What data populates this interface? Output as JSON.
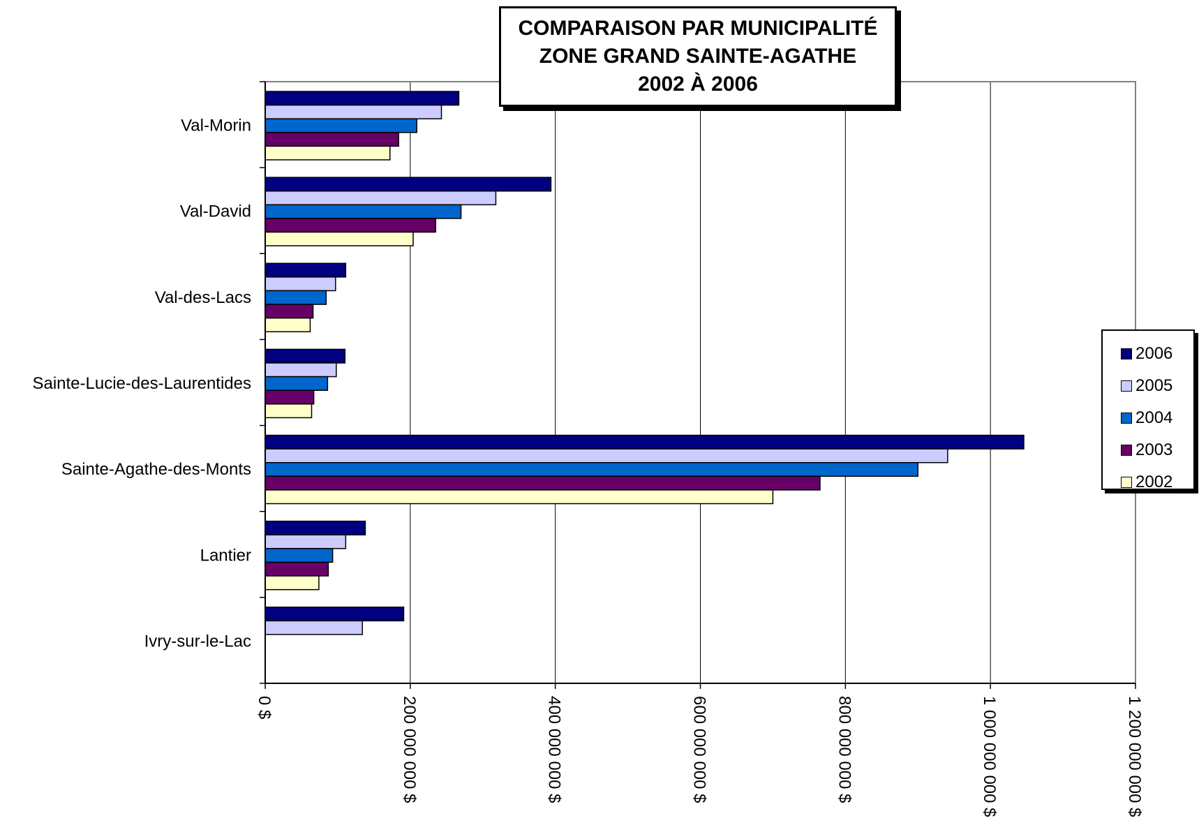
{
  "chart_data": {
    "type": "bar",
    "orientation": "horizontal",
    "title_lines": [
      "COMPARAISON PAR MUNICIPALITÉ",
      "ZONE GRAND SAINTE-AGATHE",
      "2002 À 2006"
    ],
    "categories": [
      "Val-Morin",
      "Val-David",
      "Val-des-Lacs",
      "Sainte-Lucie-des-Laurentides",
      "Sainte-Agathe-des-Monts",
      "Lantier",
      "Ivry-sur-le-Lac"
    ],
    "series": [
      {
        "name": "2006",
        "color": "#000080",
        "values": [
          267000000,
          394000000,
          111000000,
          110000000,
          1046000000,
          138000000,
          191000000
        ]
      },
      {
        "name": "2005",
        "color": "#ccccff",
        "values": [
          243000000,
          318000000,
          97000000,
          98000000,
          941000000,
          111000000,
          134000000
        ]
      },
      {
        "name": "2004",
        "color": "#0066cc",
        "values": [
          209000000,
          270000000,
          84000000,
          86000000,
          900000000,
          93000000,
          null
        ]
      },
      {
        "name": "2003",
        "color": "#660066",
        "values": [
          184000000,
          235000000,
          66000000,
          67000000,
          765000000,
          87000000,
          null
        ]
      },
      {
        "name": "2002",
        "color": "#ffffcc",
        "values": [
          172000000,
          204000000,
          62000000,
          64000000,
          700000000,
          74000000,
          null
        ]
      }
    ],
    "xlim": [
      0,
      1200000000
    ],
    "x_ticks": [
      0,
      200000000,
      400000000,
      600000000,
      800000000,
      1000000000,
      1200000000
    ],
    "x_tick_labels": [
      "0 $",
      "200 000 000 $",
      "400 000 000 $",
      "600 000 000 $",
      "800 000 000 $",
      "1 000 000 000 $",
      "1 200 000 000 $"
    ],
    "grid": "vertical",
    "legend_position": "right"
  }
}
